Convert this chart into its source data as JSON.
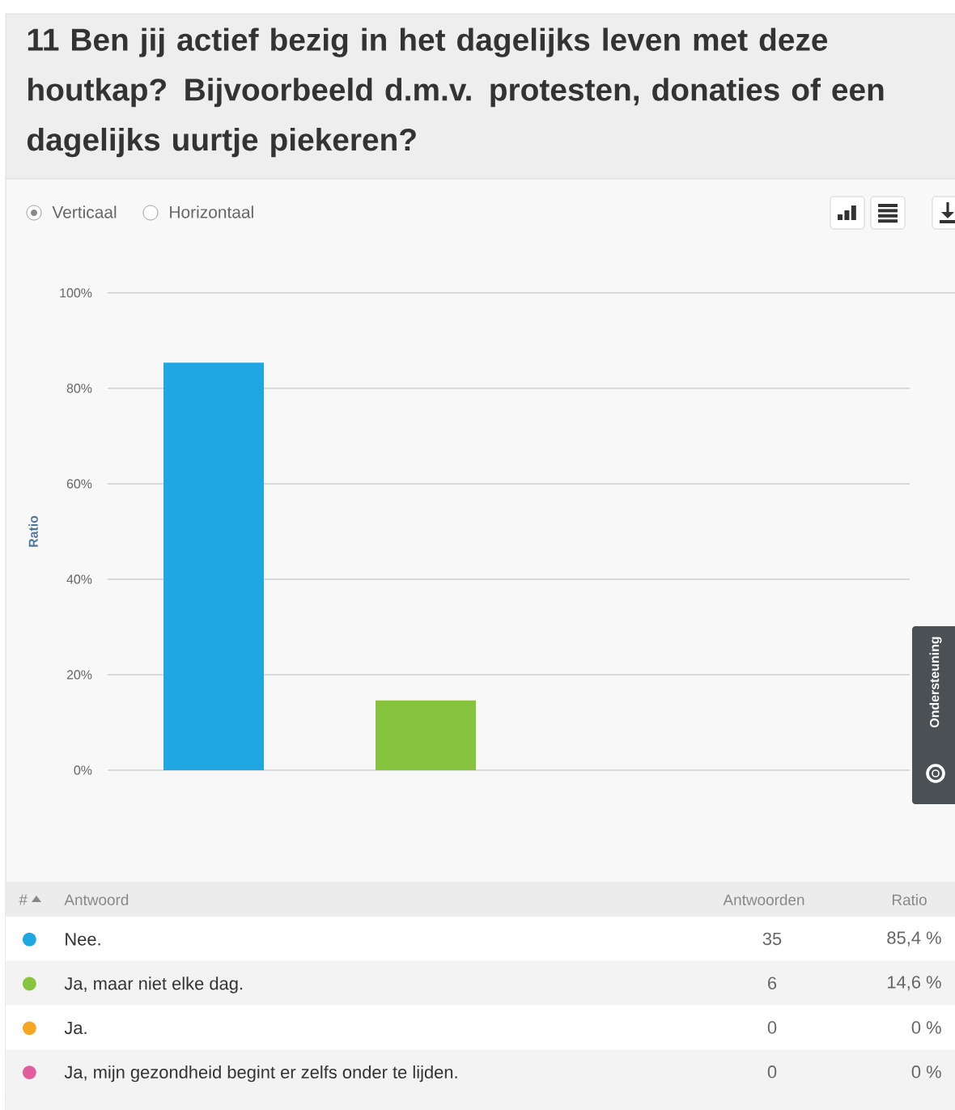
{
  "chart_data": {
    "type": "bar",
    "title": "11 Ben jij actief bezig in het dagelijks leven met deze houtkap? Bijvoorbeeld d.m.v. protesten, donaties of een dagelijks uurtje piekeren?",
    "ylabel": "Ratio",
    "categories": [
      null,
      null,
      null,
      null
    ],
    "series": [
      {
        "name": "Nee.",
        "color": "#1ea7e1",
        "values": [
          85.4,
          null,
          null,
          null
        ]
      },
      {
        "name": "Ja, maar niet elke dag.",
        "color": "#86c440",
        "values": [
          null,
          14.6,
          null,
          null
        ]
      },
      {
        "name": "Ja.",
        "color": "#f5a623",
        "values": [
          null,
          null,
          0,
          null
        ]
      },
      {
        "name": "Ja, mijn gezondheid begint er zelfs onder te lijden.",
        "color": "#e35d9e",
        "values": [
          null,
          null,
          null,
          0
        ]
      }
    ],
    "ylim": [
      0,
      100
    ],
    "yticks": [
      {
        "value": 0,
        "label": "0%"
      },
      {
        "value": 20,
        "label": "20%"
      },
      {
        "value": 40,
        "label": "40%"
      },
      {
        "value": 60,
        "label": "60%"
      },
      {
        "value": 80,
        "label": "80%"
      },
      {
        "value": 100,
        "label": "100%"
      }
    ],
    "grid": "y",
    "legend": "bottom",
    "annotations": [
      "Verticaal",
      "Horizontaal",
      "#",
      "Antwoord",
      "Antwoorden",
      "Ratio",
      "35",
      "85,4 %",
      "6",
      "14,6 %",
      "0",
      "0 %",
      "0",
      "0 %",
      "Ondersteuning"
    ]
  }
}
